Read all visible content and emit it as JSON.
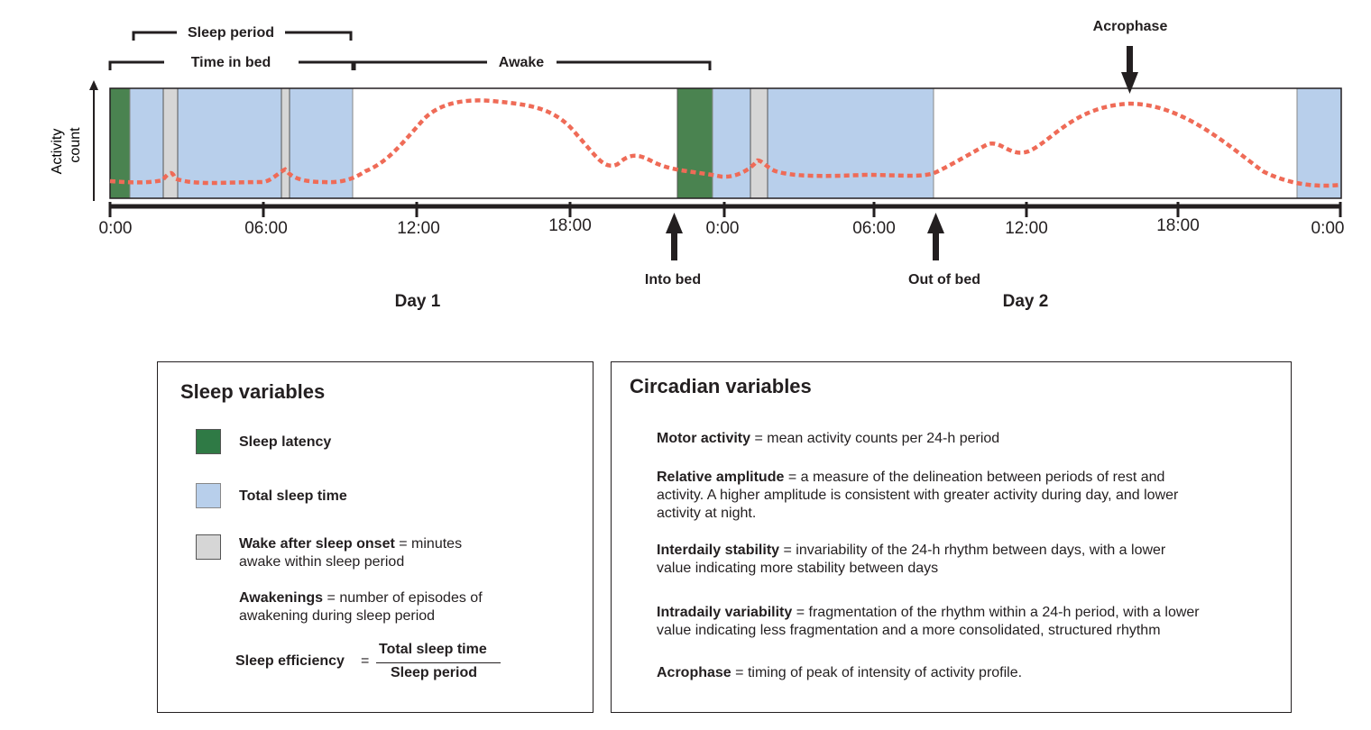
{
  "timeline": {
    "y_axis_label_line1": "Activity",
    "y_axis_label_line2": "count",
    "ticks": [
      "0:00",
      "06:00",
      "12:00",
      "18:00",
      "0:00",
      "06:00",
      "12:00",
      "18:00",
      "0:00"
    ],
    "day_labels": [
      "Day 1",
      "Day 2"
    ],
    "brackets": {
      "sleep_period": "Sleep period",
      "time_in_bed": "Time in bed",
      "awake": "Awake"
    },
    "markers": {
      "acrophase": "Acrophase",
      "into_bed": "Into bed",
      "out_of_bed": "Out of bed"
    },
    "colors": {
      "sleep_latency": "#4a8350",
      "total_sleep_time": "#b8cfeb",
      "wake_after_sleep_onset": "#d6d6d6",
      "activity_curve": "#ef6b57"
    }
  },
  "sleep_box": {
    "title": "Sleep variables",
    "sleep_latency": "Sleep latency",
    "total_sleep_time": "Total sleep time",
    "waso_term": "Wake after sleep onset",
    "waso_def_line1": " = minutes",
    "waso_def_line2": "awake within sleep period",
    "awakenings_term": "Awakenings",
    "awakenings_def_line1": " = number of episodes of",
    "awakenings_def_line2": "awakening during sleep period",
    "efficiency_term": "Sleep efficiency",
    "equals": "=",
    "numerator": "Total sleep time",
    "denominator": "Sleep period"
  },
  "circadian_box": {
    "title": "Circadian variables",
    "motor_term": "Motor activity",
    "motor_def": " = mean activity counts per 24-h period",
    "ra_term": "Relative amplitude",
    "ra_def_line1": " = a measure of the delineation between periods of rest and",
    "ra_def_line2": "activity. A higher amplitude is consistent with greater activity during day, and lower",
    "ra_def_line3": "activity at night.",
    "is_term": "Interdaily stability",
    "is_def_line1": " = invariability of the 24-h rhythm between days, with a lower",
    "is_def_line2": "value indicating more stability between days",
    "iv_term": "Intradaily variability",
    "iv_def_line1": " = fragmentation of the rhythm within a 24-h period, with a lower",
    "iv_def_line2": "value indicating less fragmentation and a more consolidated, structured rhythm",
    "acro_term": "Acrophase",
    "acro_def": " = timing of peak of intensity of activity profile."
  }
}
